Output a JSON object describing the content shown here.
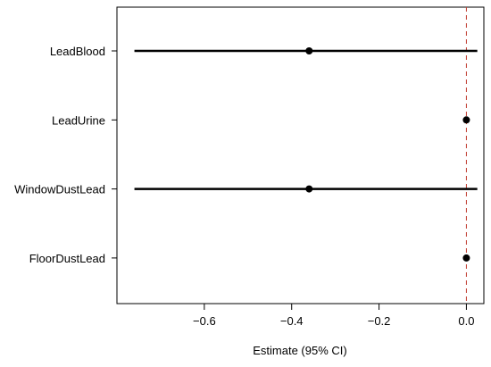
{
  "chart_data": {
    "type": "forest",
    "title": "",
    "xlabel": "Estimate (95% CI)",
    "ylabel": "",
    "xlim": [
      -0.8,
      0.04
    ],
    "xticks": [
      -0.6,
      -0.4,
      -0.2,
      0.0
    ],
    "xtick_labels": [
      "−0.6",
      "−0.4",
      "−0.2",
      "0.0"
    ],
    "reference_line": {
      "x": 0,
      "color": "#c0392b",
      "style": "dashed"
    },
    "grid": false,
    "legend": "none",
    "colors": {
      "marker": "#000000",
      "interval": "#000000"
    },
    "categories": [
      "LeadBlood",
      "LeadUrine",
      "WindowDustLead",
      "FloorDustLead"
    ],
    "estimates": [
      -0.36,
      0.0,
      -0.36,
      0.0
    ],
    "lower": [
      -0.76,
      -0.001,
      -0.76,
      -0.001
    ],
    "upper": [
      0.025,
      0.001,
      0.025,
      0.001
    ]
  }
}
